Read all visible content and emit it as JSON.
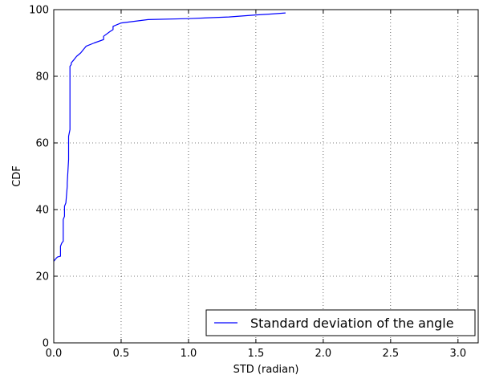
{
  "chart_data": {
    "type": "line",
    "title": "",
    "xlabel": "STD (radian)",
    "ylabel": "CDF",
    "xlim": [
      0.0,
      3.15
    ],
    "ylim": [
      0,
      100
    ],
    "grid": true,
    "grid_style": "dotted",
    "legend_position": "lower right",
    "x_ticks": [
      0.0,
      0.5,
      1.0,
      1.5,
      2.0,
      2.5,
      3.0
    ],
    "x_tick_labels": [
      "0.0",
      "0.5",
      "1.0",
      "1.5",
      "2.0",
      "2.5",
      "3.0"
    ],
    "y_ticks": [
      0,
      20,
      40,
      60,
      80,
      100
    ],
    "y_tick_labels": [
      "0",
      "20",
      "40",
      "60",
      "80",
      "100"
    ],
    "series": [
      {
        "name": "Standard deviation of the angle",
        "color": "#0000ff",
        "x": [
          0.0,
          0.01,
          0.02,
          0.03,
          0.05,
          0.05,
          0.06,
          0.07,
          0.07,
          0.08,
          0.08,
          0.09,
          0.1,
          0.1,
          0.11,
          0.11,
          0.12,
          0.12,
          0.13,
          0.13,
          0.14,
          0.15,
          0.17,
          0.2,
          0.22,
          0.24,
          0.3,
          0.37,
          0.37,
          0.42,
          0.44,
          0.44,
          0.5,
          0.7,
          1.0,
          1.3,
          1.5,
          1.62,
          1.72
        ],
        "y": [
          24.5,
          25.0,
          25.5,
          25.8,
          26.0,
          29.0,
          30.0,
          30.5,
          37.0,
          38.0,
          41.0,
          42.0,
          47.0,
          48.0,
          55.0,
          62.0,
          64.0,
          83.0,
          83.5,
          84.0,
          84.5,
          85.0,
          86.0,
          87.0,
          88.0,
          89.0,
          90.0,
          91.0,
          92.0,
          93.5,
          94.0,
          95.0,
          96.0,
          97.0,
          97.3,
          97.8,
          98.4,
          98.7,
          99.0
        ]
      }
    ]
  }
}
